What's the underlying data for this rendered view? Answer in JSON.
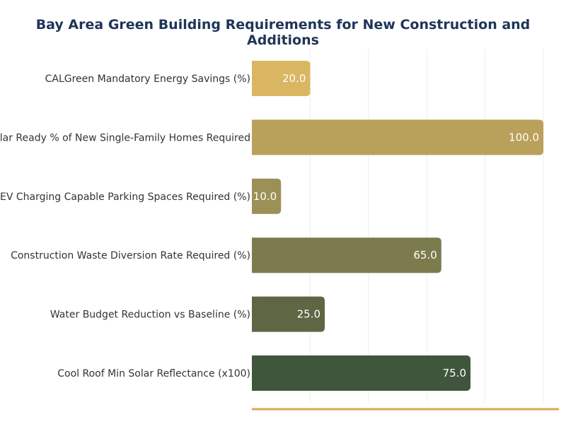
{
  "chart_data": {
    "type": "bar",
    "orientation": "horizontal",
    "title": "Bay Area Green Building Requirements for New Construction and Additions",
    "xlabel": "",
    "ylabel": "",
    "xlim": [
      0,
      100
    ],
    "grid": true,
    "categories": [
      "CALGreen Mandatory Energy Savings (%)",
      "Solar Ready % of New Single-Family Homes Required",
      "EV Charging Capable Parking Spaces Required (%)",
      "Construction Waste Diversion Rate Required (%)",
      "Water Budget Reduction vs Baseline (%)",
      "Cool Roof Min Solar Reflectance (x100)"
    ],
    "values": [
      20.0,
      100.0,
      10.0,
      65.0,
      25.0,
      75.0
    ],
    "data_labels": [
      "20.0",
      "100.0",
      "10.0",
      "65.0",
      "25.0",
      "75.0"
    ],
    "colors": [
      "#dbb662",
      "#b9a05b",
      "#9c9057",
      "#7c7b4e",
      "#5e6644",
      "#3f563c"
    ],
    "axis_line_color": "#d9a94f"
  }
}
